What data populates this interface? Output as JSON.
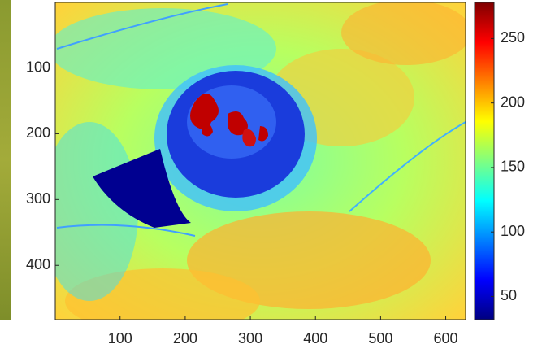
{
  "chart_data": {
    "type": "image",
    "colormap": "jet",
    "xlim": [
      0.5,
      630.5
    ],
    "xticks": [
      100,
      200,
      300,
      400,
      500,
      600
    ],
    "ylim": [
      0.5,
      482.5
    ],
    "yticks": [
      100,
      200,
      300,
      400
    ],
    "y_reversed": true,
    "colorbar": {
      "clim": [
        32,
        278
      ],
      "ticks": [
        50,
        100,
        150,
        200,
        250
      ]
    }
  }
}
